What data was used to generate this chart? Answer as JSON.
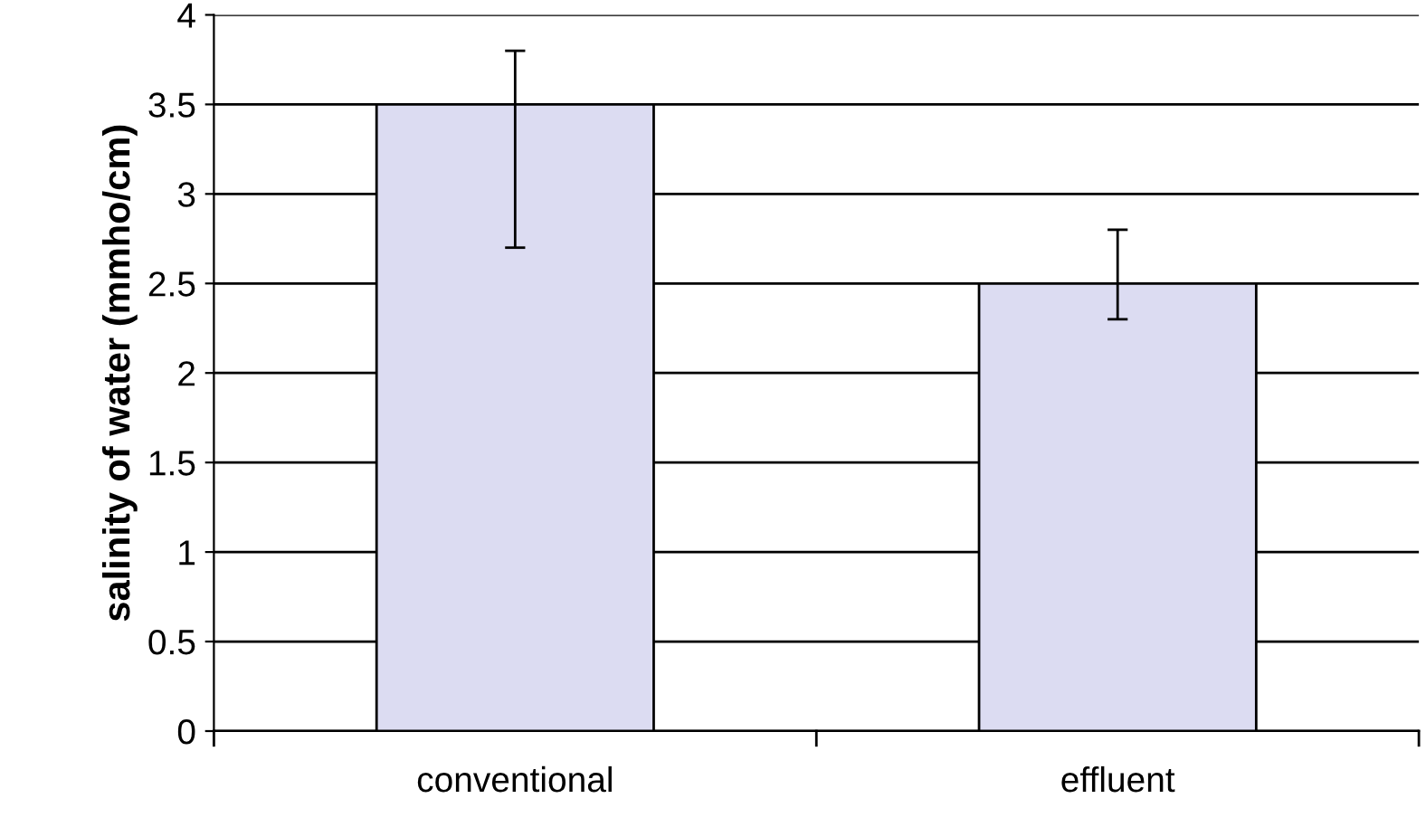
{
  "chart_data": {
    "type": "bar",
    "ylabel": "salinity of water (mmho/cm)",
    "categories": [
      "conventional",
      "effluent"
    ],
    "values": [
      3.5,
      2.5
    ],
    "errors": [
      [
        2.7,
        3.8
      ],
      [
        2.3,
        2.8
      ]
    ],
    "color": "#dcdcf2",
    "ylim": [
      0,
      4
    ],
    "yticks": [
      0,
      0.5,
      1,
      1.5,
      2,
      2.5,
      3,
      3.5,
      4
    ],
    "grid": "y",
    "legend": false
  }
}
